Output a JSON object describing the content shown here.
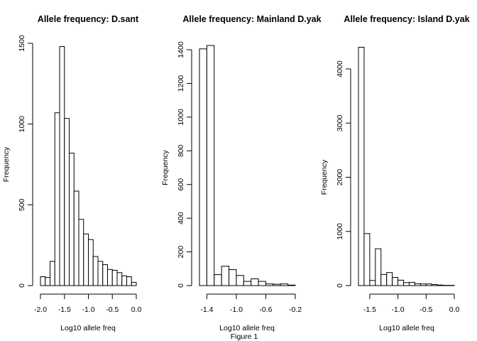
{
  "caption": "Figure 1",
  "colors": {
    "bar_fill": "#ffffff",
    "bar_stroke": "#000000",
    "text": "#000000",
    "background": "#ffffff"
  },
  "chart_data": [
    {
      "type": "bar",
      "title": "Allele frequency: D.sant",
      "xlabel": "Log10 allele freq",
      "ylabel": "Frequency",
      "bin_start": -2.0,
      "bin_width": 0.1,
      "values": [
        55,
        50,
        150,
        1070,
        1480,
        1035,
        820,
        585,
        410,
        320,
        285,
        180,
        150,
        130,
        100,
        95,
        80,
        60,
        55,
        20
      ],
      "xlim": [
        -2.0,
        0.0
      ],
      "xticks": [
        -2.0,
        -1.5,
        -1.0,
        -0.5,
        0.0
      ],
      "xtick_labels": [
        "-2.0",
        "-1.5",
        "-1.0",
        "-0.5",
        "0.0"
      ],
      "ylim": [
        0,
        1500
      ],
      "yticks": [
        0,
        500,
        1000,
        1500
      ],
      "ytick_labels": [
        "0",
        "500",
        "1000",
        "1500"
      ],
      "grid": false
    },
    {
      "type": "bar",
      "title": "Allele frequency: Mainland D.yak",
      "xlabel": "Log10 allele freq",
      "ylabel": "Frequency",
      "bin_start": -1.5,
      "bin_width": 0.1,
      "values": [
        1405,
        1425,
        65,
        115,
        95,
        60,
        25,
        40,
        25,
        10,
        8,
        10,
        3
      ],
      "xlim": [
        -1.5,
        -0.2
      ],
      "xticks": [
        -1.4,
        -1.0,
        -0.6,
        -0.2
      ],
      "xtick_labels": [
        "-1.4",
        "-1.0",
        "-0.6",
        "-0.2"
      ],
      "ylim": [
        0,
        1400
      ],
      "yticks": [
        0,
        200,
        400,
        600,
        800,
        1000,
        1200,
        1400
      ],
      "ytick_labels": [
        "0",
        "200",
        "400",
        "600",
        "800",
        "1000",
        "1200",
        "1400"
      ],
      "grid": false
    },
    {
      "type": "bar",
      "title": "Allele frequency: Island D.yak",
      "xlabel": "Log10 allele freq",
      "ylabel": "Frequency",
      "bin_start": -1.7,
      "bin_width": 0.1,
      "values": [
        4400,
        960,
        95,
        680,
        205,
        240,
        150,
        100,
        55,
        60,
        35,
        30,
        30,
        20,
        10,
        5,
        5
      ],
      "xlim": [
        -1.7,
        0.0
      ],
      "xticks": [
        -1.5,
        -1.0,
        -0.5,
        0.0
      ],
      "xtick_labels": [
        "-1.5",
        "-1.0",
        "-0.5",
        "0.0"
      ],
      "ylim": [
        0,
        4000
      ],
      "yticks": [
        0,
        1000,
        2000,
        3000,
        4000
      ],
      "ytick_labels": [
        "0",
        "1000",
        "2000",
        "3000",
        "4000"
      ],
      "grid": false
    }
  ]
}
